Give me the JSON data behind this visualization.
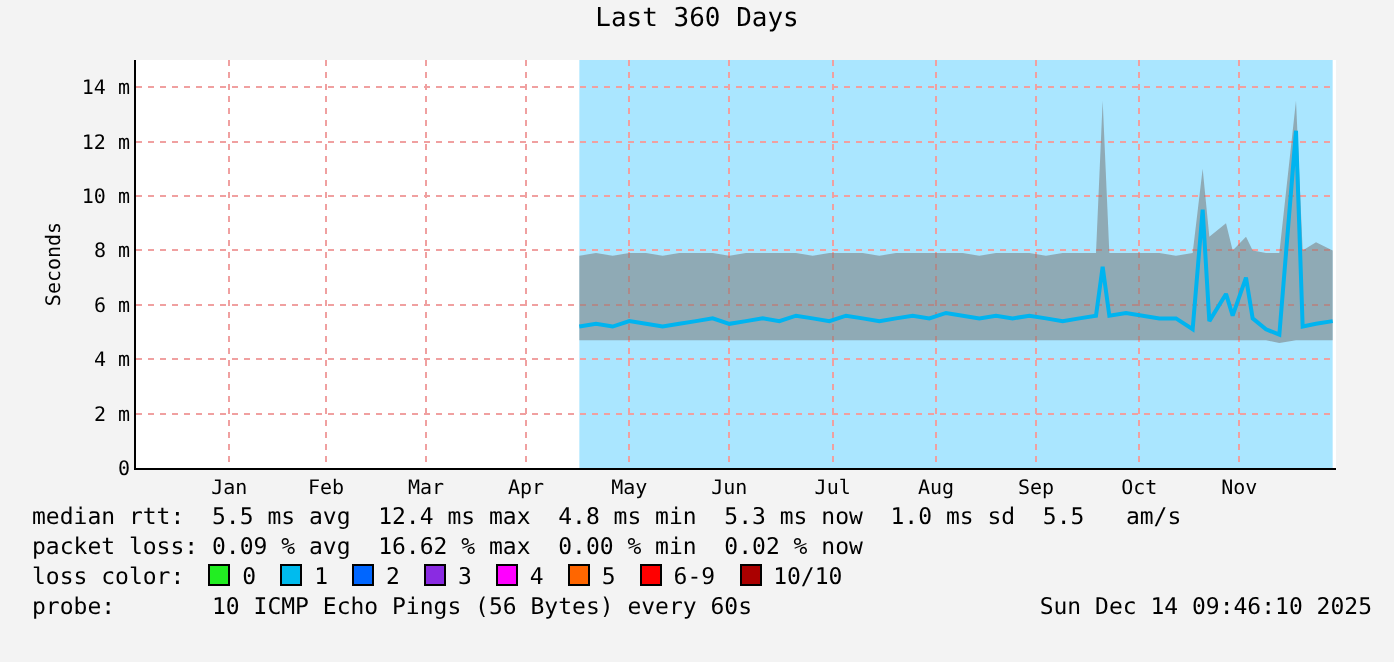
{
  "chart_data": {
    "type": "line",
    "title": "Last 360 Days",
    "ylabel": "Seconds",
    "x": [
      "2025-05-01",
      "2025-05-06",
      "2025-05-11",
      "2025-05-16",
      "2025-05-21",
      "2025-05-26",
      "2025-05-31",
      "2025-06-05",
      "2025-06-10",
      "2025-06-15",
      "2025-06-20",
      "2025-06-25",
      "2025-06-30",
      "2025-07-05",
      "2025-07-10",
      "2025-07-15",
      "2025-07-20",
      "2025-07-25",
      "2025-07-30",
      "2025-08-04",
      "2025-08-09",
      "2025-08-14",
      "2025-08-19",
      "2025-08-24",
      "2025-08-29",
      "2025-09-03",
      "2025-09-08",
      "2025-09-13",
      "2025-09-18",
      "2025-09-23",
      "2025-09-28",
      "2025-10-03",
      "2025-10-05",
      "2025-10-07",
      "2025-10-12",
      "2025-10-17",
      "2025-10-22",
      "2025-10-27",
      "2025-11-01",
      "2025-11-04",
      "2025-11-06",
      "2025-11-11",
      "2025-11-13",
      "2025-11-17",
      "2025-11-19",
      "2025-11-23",
      "2025-11-27",
      "2025-12-02",
      "2025-12-04",
      "2025-12-08",
      "2025-12-13"
    ],
    "series": [
      {
        "color": "#00b4f0",
        "values": [
          5.2,
          5.3,
          5.2,
          5.4,
          5.3,
          5.2,
          5.3,
          5.4,
          5.5,
          5.3,
          5.4,
          5.5,
          5.4,
          5.6,
          5.5,
          5.4,
          5.6,
          5.5,
          5.4,
          5.5,
          5.6,
          5.5,
          5.7,
          5.6,
          5.5,
          5.6,
          5.5,
          5.6,
          5.5,
          5.4,
          5.5,
          5.6,
          7.4,
          5.6,
          5.7,
          5.6,
          5.5,
          5.5,
          5.1,
          9.5,
          5.4,
          6.4,
          5.6,
          7.0,
          5.5,
          5.1,
          4.9,
          12.4,
          5.2,
          5.3,
          5.4
        ],
        "lower": [
          4.7,
          4.7,
          4.7,
          4.7,
          4.7,
          4.7,
          4.7,
          4.7,
          4.7,
          4.7,
          4.7,
          4.7,
          4.7,
          4.7,
          4.7,
          4.7,
          4.7,
          4.7,
          4.7,
          4.7,
          4.7,
          4.7,
          4.7,
          4.7,
          4.7,
          4.7,
          4.7,
          4.7,
          4.7,
          4.7,
          4.7,
          4.7,
          4.7,
          4.7,
          4.7,
          4.7,
          4.7,
          4.7,
          4.7,
          4.7,
          4.7,
          4.7,
          4.7,
          4.7,
          4.7,
          4.7,
          4.6,
          4.7,
          4.7,
          4.7,
          4.7
        ],
        "upper": [
          7.8,
          7.9,
          7.8,
          7.9,
          7.9,
          7.8,
          7.9,
          7.9,
          7.9,
          7.8,
          7.9,
          7.9,
          7.9,
          7.9,
          7.8,
          7.9,
          7.9,
          7.9,
          7.8,
          7.9,
          7.9,
          7.9,
          7.9,
          7.9,
          7.8,
          7.9,
          7.9,
          7.9,
          7.8,
          7.9,
          7.9,
          7.9,
          13.5,
          7.9,
          7.9,
          7.9,
          7.9,
          7.8,
          7.9,
          11.0,
          8.5,
          9.0,
          8.0,
          8.5,
          8.0,
          7.9,
          7.9,
          13.5,
          8.0,
          8.3,
          8.0
        ]
      }
    ],
    "xlim": [
      "2024-12-19",
      "2025-12-14"
    ],
    "xticks": [
      {
        "value": "2025-01-16",
        "label": "Jan"
      },
      {
        "value": "2025-02-14",
        "label": "Feb"
      },
      {
        "value": "2025-03-16",
        "label": "Mar"
      },
      {
        "value": "2025-04-15",
        "label": "Apr"
      },
      {
        "value": "2025-05-16",
        "label": "May"
      },
      {
        "value": "2025-06-15",
        "label": "Jun"
      },
      {
        "value": "2025-07-16",
        "label": "Jul"
      },
      {
        "value": "2025-08-16",
        "label": "Aug"
      },
      {
        "value": "2025-09-15",
        "label": "Sep"
      },
      {
        "value": "2025-10-16",
        "label": "Oct"
      },
      {
        "value": "2025-11-15",
        "label": "Nov"
      }
    ],
    "ylim": [
      0,
      15
    ],
    "yticks": [
      0,
      {
        "value": 2,
        "label": "2 m"
      },
      {
        "value": 4,
        "label": "4 m"
      },
      {
        "value": 6,
        "label": "6 m"
      },
      {
        "value": 8,
        "label": "8 m"
      },
      {
        "value": 10,
        "label": "10 m"
      },
      {
        "value": 12,
        "label": "12 m"
      },
      {
        "value": 14,
        "label": "14 m"
      }
    ],
    "grid": true,
    "bands": [
      {
        "axis": "x",
        "from": "2025-05-01",
        "to": "2025-12-13",
        "color": "#aae6ff"
      }
    ],
    "annotations": [
      "median rtt:  5.5 ms avg  12.4 ms max  4.8 ms min  5.3 ms now  1.0 ms sd  5.5   am/s",
      "packet loss: 0.09 % avg  16.62 % max  0.00 % min  0.02 % now",
      "loss color:",
      "0",
      "1",
      "2",
      "3",
      "4",
      "5",
      "6-9",
      "10/10",
      "probe:       10 ICMP Echo Pings (56 Bytes) every 60s",
      "Sun Dec 14 09:46:10 2025"
    ]
  }
}
